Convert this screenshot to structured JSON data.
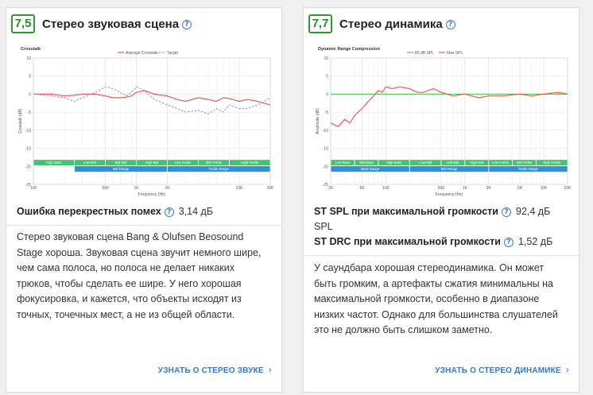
{
  "left": {
    "score": "7,5",
    "title": "Стерео звуковая сцена",
    "metric_label": "Ошибка перекрестных помех",
    "metric_value": "3,14 дБ",
    "description": "Стерео звуковая сцена Bang & Olufsen Beosound Stage хороша. Звуковая сцена звучит немного шире, чем сама полоса, но полоса не делает никаких трюков, чтобы сделать ее шире. У него хорошая фокусировка, и кажется, что объекты исходят из точных, точечных мест, а не из общей области.",
    "link": "УЗНАТЬ О СТЕРЕО ЗВУКЕ",
    "chart": {
      "title": "Crosstalk",
      "legend": [
        "Average Crosstalk",
        "Target"
      ],
      "ylabel": "Crosstalk (dB)",
      "xlabel": "Frequency (Hz)",
      "yticks": [
        "10",
        "5",
        "0",
        "-5",
        "-10",
        "-15",
        "-20",
        "-25"
      ],
      "xticks": [
        "100",
        "500",
        "1K",
        "2K",
        "10K",
        "20K"
      ],
      "bands_top": [
        "High Bass",
        "Low-Mid",
        "Mid-Mid",
        "High-Mid",
        "Low-Treble",
        "Mid-Treble",
        "High-Treble"
      ],
      "bands_bottom": [
        "Mid Range",
        "Treble Range"
      ]
    }
  },
  "right": {
    "score": "7,7",
    "title": "Стерео динамика",
    "metric1_label": "ST SPL при максимальной громкости",
    "metric1_value": "92,4 дБ SPL",
    "metric2_label": "ST DRC при максимальной громкости",
    "metric2_value": "1,52 дБ",
    "description": "У саундбара хорошая стереодинамика. Он может быть громким, а артефакты сжатия минимальны на максимальной громкости, особенно в диапазоне низких частот. Однако для большинства слушателей это не должно быть слишком заметно.",
    "link": "УЗНАТЬ О СТЕРЕО ДИНАМИКЕ",
    "chart": {
      "title": "Dynamic Range Compression",
      "legend": [
        "80 dB SPL",
        "Max SPL"
      ],
      "ylabel": "Amplitude (dB)",
      "xlabel": "Frequency (Hz)",
      "yticks": [
        "10",
        "5",
        "0",
        "-5",
        "-10",
        "-15",
        "-20",
        "-25"
      ],
      "xticks": [
        "20",
        "50",
        "100",
        "500",
        "1K",
        "2K",
        "5K",
        "10K",
        "20K"
      ],
      "bands_top": [
        "Low-Bass",
        "Mid-Bass",
        "High-Bass",
        "Low-Mid",
        "Mid-Mid",
        "High-Mid",
        "Low-Treble",
        "Mid-Treble",
        "High-Treble"
      ],
      "bands_bottom": [
        "Bass Range",
        "Mid-Range",
        "Treble Range"
      ]
    }
  },
  "colors": {
    "score_green": "#2e9a2e",
    "accent_blue": "#2f78cf",
    "line_red": "#e85a5a",
    "target_dash": "#9b95c9",
    "ref_green": "#5cc25c",
    "band_green": "#3cc86e",
    "band_blue": "#2f8fe0"
  },
  "chart_data": [
    {
      "type": "line",
      "title": "Crosstalk",
      "xlabel": "Frequency (Hz)",
      "ylabel": "Crosstalk (dB)",
      "xscale": "log",
      "xlim": [
        100,
        20000
      ],
      "ylim": [
        -25,
        10
      ],
      "series": [
        {
          "name": "Average Crosstalk",
          "x": [
            100,
            150,
            200,
            250,
            300,
            400,
            500,
            600,
            700,
            800,
            900,
            1000,
            1200,
            1500,
            2000,
            2500,
            3000,
            4000,
            5000,
            6000,
            7000,
            8000,
            10000,
            12000,
            15000,
            20000
          ],
          "y": [
            0,
            0,
            -0.5,
            -0.3,
            0,
            0,
            -0.5,
            -1,
            -1,
            -0.8,
            -0.5,
            0.5,
            1,
            0,
            -0.5,
            -1.5,
            -2,
            -1,
            -1.5,
            -2,
            -1,
            -1.2,
            -2,
            -1.5,
            -2,
            -3
          ]
        },
        {
          "name": "Target",
          "x": [
            100,
            150,
            200,
            250,
            300,
            400,
            500,
            600,
            700,
            800,
            900,
            1000,
            1200,
            1500,
            2000,
            2500,
            3000,
            4000,
            5000,
            6000,
            7000,
            8000,
            10000,
            12000,
            15000,
            20000
          ],
          "y": [
            0,
            -0.5,
            -1,
            -2,
            -1,
            0.5,
            2,
            1.5,
            0.5,
            -0.5,
            0.5,
            2,
            1,
            -1.5,
            -3,
            -4,
            -5,
            -4.5,
            -5.5,
            -4,
            -5,
            -3,
            -4,
            -4,
            -3,
            -1
          ]
        }
      ]
    },
    {
      "type": "line",
      "title": "Dynamic Range Compression",
      "xlabel": "Frequency (Hz)",
      "ylabel": "Amplitude (dB)",
      "xscale": "log",
      "xlim": [
        20,
        20000
      ],
      "ylim": [
        -25,
        10
      ],
      "series": [
        {
          "name": "80 dB SPL",
          "x": [
            20,
            20000
          ],
          "y": [
            0,
            0
          ]
        },
        {
          "name": "Max SPL",
          "x": [
            20,
            25,
            30,
            35,
            40,
            50,
            60,
            70,
            80,
            90,
            100,
            120,
            150,
            200,
            250,
            300,
            400,
            500,
            700,
            1000,
            1500,
            2000,
            3000,
            5000,
            7000,
            10000,
            15000,
            20000
          ],
          "y": [
            -8,
            -9,
            -7,
            -8,
            -6,
            -4,
            -2,
            -0.5,
            1,
            0.5,
            2,
            1.5,
            2,
            1.5,
            0.5,
            0.5,
            1.5,
            0.5,
            -0.5,
            0,
            -1,
            -0.5,
            -0.5,
            0,
            -0.5,
            0,
            0.5,
            0
          ]
        }
      ]
    }
  ]
}
